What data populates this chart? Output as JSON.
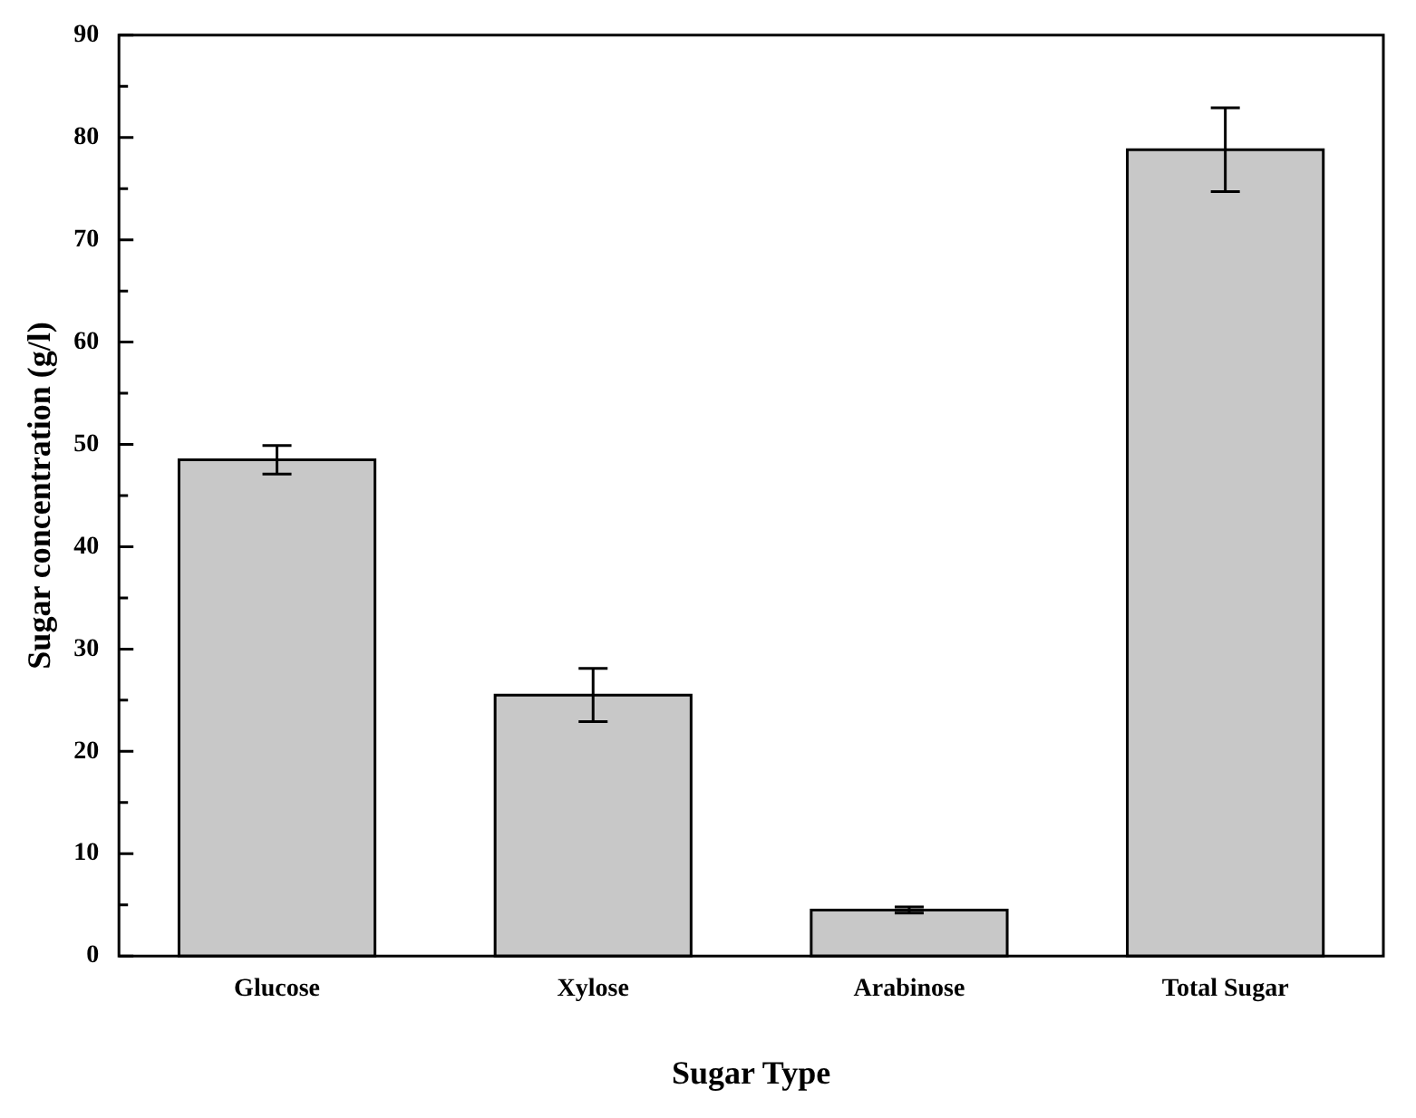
{
  "chart_data": {
    "type": "bar",
    "xlabel": "Sugar Type",
    "ylabel": "Sugar concentration (g/l)",
    "categories": [
      "Glucose",
      "Xylose",
      "Arabinose",
      "Total Sugar"
    ],
    "values": [
      48.5,
      25.5,
      4.5,
      78.8
    ],
    "errors": [
      1.4,
      2.6,
      0.3,
      4.1
    ],
    "color": "#c8c8c8",
    "ylim": [
      0,
      90
    ],
    "yticks": [
      0,
      {
        "value": 5,
        "label": null
      },
      10,
      {
        "value": 15,
        "label": null
      },
      20,
      {
        "value": 25,
        "label": null
      },
      30,
      {
        "value": 35,
        "label": null
      },
      40,
      {
        "value": 45,
        "label": null
      },
      50,
      {
        "value": 55,
        "label": null
      },
      60,
      {
        "value": 65,
        "label": null
      },
      70,
      {
        "value": 75,
        "label": null
      },
      80,
      {
        "value": 85,
        "label": null
      },
      90
    ],
    "grid": false,
    "legend": false
  }
}
